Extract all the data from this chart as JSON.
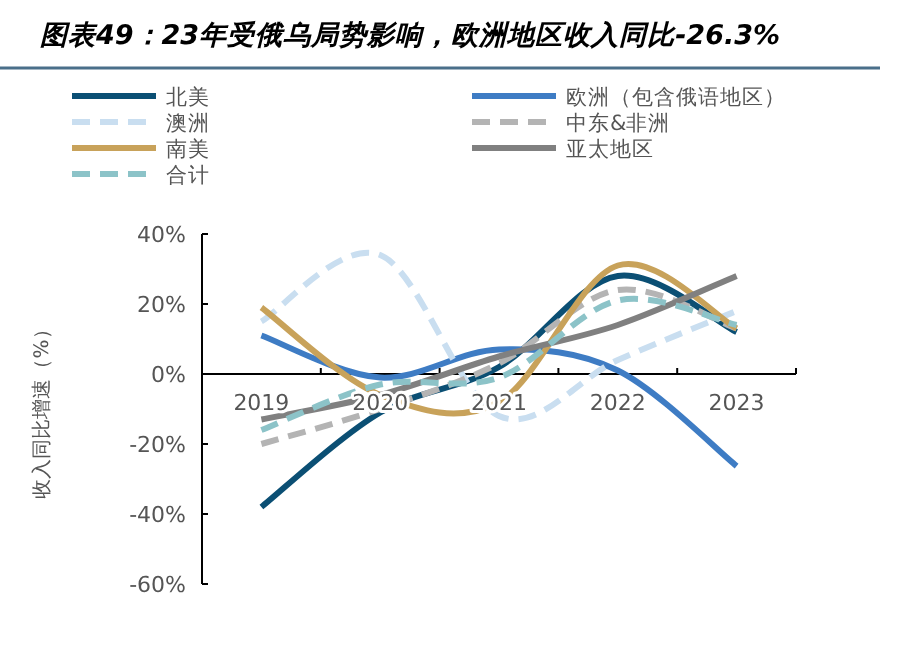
{
  "chart_data": {
    "type": "line",
    "title": "图表49：23年受俄乌局势影响，欧洲地区收入同比-26.3%",
    "ylabel": "收入同比增速（%）",
    "categories": [
      "2019",
      "2020",
      "2021",
      "2022",
      "2023"
    ],
    "series": [
      {
        "name": "北美",
        "color": "#0b4f74",
        "values": [
          -38,
          -11,
          2,
          28,
          12
        ]
      },
      {
        "name": "欧洲（包含俄语地区）",
        "color": "#3e7cc4",
        "values": [
          11,
          -1,
          7,
          1,
          -26.3
        ]
      },
      {
        "name": "澳洲",
        "color": "#c9def0",
        "line_style": "dashed",
        "values": [
          15,
          34,
          -12,
          4,
          18
        ]
      },
      {
        "name": "中东&非洲",
        "color": "#b4b4b4",
        "line_style": "dashed",
        "values": [
          -20,
          -10,
          3,
          24,
          13
        ]
      },
      {
        "name": "南美",
        "color": "#c8a25a",
        "values": [
          19,
          -6,
          -8,
          31,
          13
        ]
      },
      {
        "name": "亚太地区",
        "color": "#808080",
        "values": [
          -13,
          -6,
          5,
          14,
          28
        ]
      },
      {
        "name": "合计",
        "color": "#8cc3c8",
        "line_style": "dashed",
        "values": [
          -16,
          -3,
          -1,
          21,
          14
        ]
      }
    ],
    "ylim": [
      -60,
      40
    ],
    "yticks": [
      {
        "value": -60,
        "label": "-60%"
      },
      {
        "value": -40,
        "label": "-40%"
      },
      {
        "value": -20,
        "label": "-20%"
      },
      {
        "value": 0,
        "label": "0%"
      },
      {
        "value": 20,
        "label": "20%"
      },
      {
        "value": 40,
        "label": "40%"
      }
    ],
    "legend": "top",
    "grid": false
  }
}
